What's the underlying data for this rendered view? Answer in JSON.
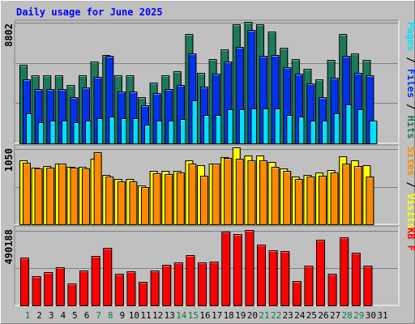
{
  "title": "Daily usage for June 2025",
  "colors": {
    "hits": "#1a7a5a",
    "files": "#0033ee",
    "pages": "#00e0ff",
    "visits": "#ffff00",
    "sites": "#ff8800",
    "kbytes": "#ff0000",
    "weekend_label": "#008040",
    "weekday_label": "#000000",
    "panel_bg": "#c0c0c0"
  },
  "chart_data": [
    {
      "type": "bar",
      "panel": "top",
      "categories": [
        "1",
        "2",
        "3",
        "4",
        "5",
        "6",
        "7",
        "8",
        "9",
        "10",
        "11",
        "12",
        "13",
        "14",
        "15",
        "16",
        "17",
        "18",
        "19",
        "20",
        "21",
        "22",
        "23",
        "24",
        "25",
        "26",
        "27",
        "28",
        "29",
        "30",
        "31"
      ],
      "ylabel_max": "8802",
      "ylim": [
        0,
        8802
      ],
      "right_label": {
        "parts": [
          "Pages",
          " / ",
          "Files",
          " / ",
          "Hits"
        ]
      },
      "series": [
        {
          "name": "Hits",
          "values": [
            5700,
            4900,
            4900,
            4900,
            4200,
            4900,
            5900,
            6400,
            4900,
            4900,
            3300,
            4400,
            4900,
            5200,
            7900,
            5100,
            6100,
            6800,
            8600,
            8800,
            8600,
            8100,
            6900,
            6100,
            5400,
            4600,
            6000,
            7900,
            6500,
            6000,
            0
          ]
        },
        {
          "name": "Files",
          "values": [
            4600,
            3900,
            3900,
            3900,
            3300,
            4000,
            4800,
            6300,
            3700,
            3700,
            2700,
            3600,
            3900,
            4200,
            6500,
            4100,
            5000,
            5900,
            7000,
            8200,
            6300,
            6400,
            5500,
            5000,
            4300,
            3300,
            4700,
            6300,
            5100,
            4900,
            0
          ]
        },
        {
          "name": "Pages",
          "values": [
            2100,
            1500,
            1600,
            1600,
            1500,
            1600,
            1800,
            1900,
            1800,
            1800,
            1300,
            1600,
            1600,
            1700,
            3100,
            2000,
            2000,
            2400,
            2400,
            2500,
            2500,
            2500,
            2000,
            1900,
            1600,
            1600,
            2100,
            2800,
            2400,
            1600,
            0
          ]
        }
      ]
    },
    {
      "type": "bar",
      "panel": "middle",
      "categories": [
        "1",
        "2",
        "3",
        "4",
        "5",
        "6",
        "7",
        "8",
        "9",
        "10",
        "11",
        "12",
        "13",
        "14",
        "15",
        "16",
        "17",
        "18",
        "19",
        "20",
        "21",
        "22",
        "23",
        "24",
        "25",
        "26",
        "27",
        "28",
        "29",
        "30",
        "31"
      ],
      "ylabel_max": "1050",
      "ylim": [
        0,
        1050
      ],
      "right_label": {
        "parts": [
          "Sites",
          " / ",
          "Visits"
        ]
      },
      "series": [
        {
          "name": "Visits",
          "values": [
            880,
            780,
            800,
            830,
            790,
            790,
            900,
            680,
            620,
            620,
            530,
            730,
            730,
            730,
            880,
            810,
            830,
            930,
            1060,
            950,
            950,
            860,
            770,
            660,
            680,
            710,
            740,
            940,
            880,
            810,
            0
          ]
        },
        {
          "name": "Sites",
          "values": [
            850,
            770,
            780,
            830,
            780,
            770,
            990,
            660,
            590,
            590,
            510,
            700,
            690,
            710,
            840,
            670,
            840,
            920,
            900,
            880,
            880,
            790,
            730,
            620,
            650,
            670,
            710,
            840,
            800,
            660,
            0
          ]
        }
      ]
    },
    {
      "type": "bar",
      "panel": "bottom",
      "categories": [
        "1",
        "2",
        "3",
        "4",
        "5",
        "6",
        "7",
        "8",
        "9",
        "10",
        "11",
        "12",
        "13",
        "14",
        "15",
        "16",
        "17",
        "18",
        "19",
        "20",
        "21",
        "22",
        "23",
        "24",
        "25",
        "26",
        "27",
        "28",
        "29",
        "30",
        "31"
      ],
      "ylabel_max": "490188",
      "ylim": [
        0,
        490188
      ],
      "right_label": {
        "parts": [
          "KB",
          " F"
        ]
      },
      "series": [
        {
          "name": "KB F",
          "values": [
            310000,
            185000,
            215000,
            245000,
            140000,
            225000,
            320000,
            375000,
            200000,
            220000,
            150000,
            225000,
            260000,
            275000,
            325000,
            275000,
            285000,
            480000,
            465000,
            490000,
            395000,
            355000,
            350000,
            155000,
            255000,
            425000,
            200000,
            440000,
            340000,
            255000,
            0
          ]
        }
      ]
    }
  ],
  "x_labels": [
    {
      "label": "1",
      "weekend": true
    },
    {
      "label": "2",
      "weekend": false
    },
    {
      "label": "3",
      "weekend": false
    },
    {
      "label": "4",
      "weekend": false
    },
    {
      "label": "5",
      "weekend": false
    },
    {
      "label": "6",
      "weekend": false
    },
    {
      "label": "7",
      "weekend": true
    },
    {
      "label": "8",
      "weekend": true
    },
    {
      "label": "9",
      "weekend": false
    },
    {
      "label": "10",
      "weekend": false
    },
    {
      "label": "11",
      "weekend": false
    },
    {
      "label": "12",
      "weekend": false
    },
    {
      "label": "13",
      "weekend": false
    },
    {
      "label": "14",
      "weekend": true
    },
    {
      "label": "15",
      "weekend": true
    },
    {
      "label": "16",
      "weekend": false
    },
    {
      "label": "17",
      "weekend": false
    },
    {
      "label": "18",
      "weekend": false
    },
    {
      "label": "19",
      "weekend": false
    },
    {
      "label": "20",
      "weekend": false
    },
    {
      "label": "21",
      "weekend": true
    },
    {
      "label": "22",
      "weekend": true
    },
    {
      "label": "23",
      "weekend": false
    },
    {
      "label": "24",
      "weekend": false
    },
    {
      "label": "25",
      "weekend": false
    },
    {
      "label": "26",
      "weekend": false
    },
    {
      "label": "27",
      "weekend": false
    },
    {
      "label": "28",
      "weekend": true
    },
    {
      "label": "29",
      "weekend": true
    },
    {
      "label": "30",
      "weekend": false
    },
    {
      "label": "31",
      "weekend": false
    }
  ]
}
